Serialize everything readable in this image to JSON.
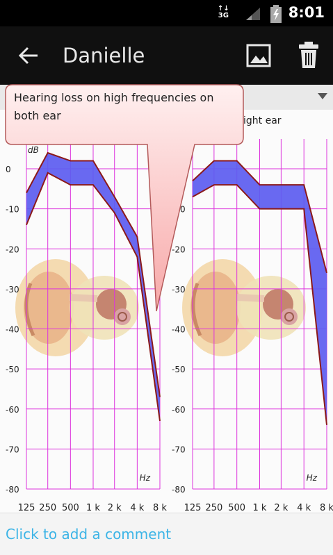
{
  "status_bar": {
    "network_type": "3G",
    "time": "8:01"
  },
  "action_bar": {
    "title": "Danielle",
    "icons": [
      "back-arrow-icon",
      "image-icon",
      "trash-icon"
    ]
  },
  "callout": {
    "text": "Hearing loss on high frequencies on both ear"
  },
  "chart_data": {
    "type": "area",
    "ylabel": "dB",
    "xlabel": "Hz",
    "x_ticks": [
      "125",
      "250",
      "500",
      "1 k",
      "2 k",
      "4 k",
      "8 k"
    ],
    "y_ticks": [
      0,
      -10,
      -20,
      -30,
      -40,
      -50,
      -60,
      -70,
      -80
    ],
    "ylim": [
      -80,
      4
    ],
    "grid": true,
    "panels": [
      {
        "name": "",
        "upper": [
          -6,
          4,
          2,
          2,
          -7,
          -17,
          -57
        ],
        "lower": [
          -14,
          -1,
          -4,
          -4,
          -11,
          -22,
          -63
        ]
      },
      {
        "name": "ight ear",
        "upper": [
          -3,
          2,
          2,
          -4,
          -4,
          -4,
          -26
        ],
        "lower": [
          -7,
          -4,
          -4,
          -10,
          -10,
          -10,
          -64
        ]
      }
    ],
    "colors": {
      "band_fill": "#5c5cf0",
      "band_edge": "#8b1a1a",
      "grid": "#dd33dd",
      "tick_text": "#222222"
    }
  },
  "comment_bar": {
    "placeholder": "Click to add a comment"
  }
}
